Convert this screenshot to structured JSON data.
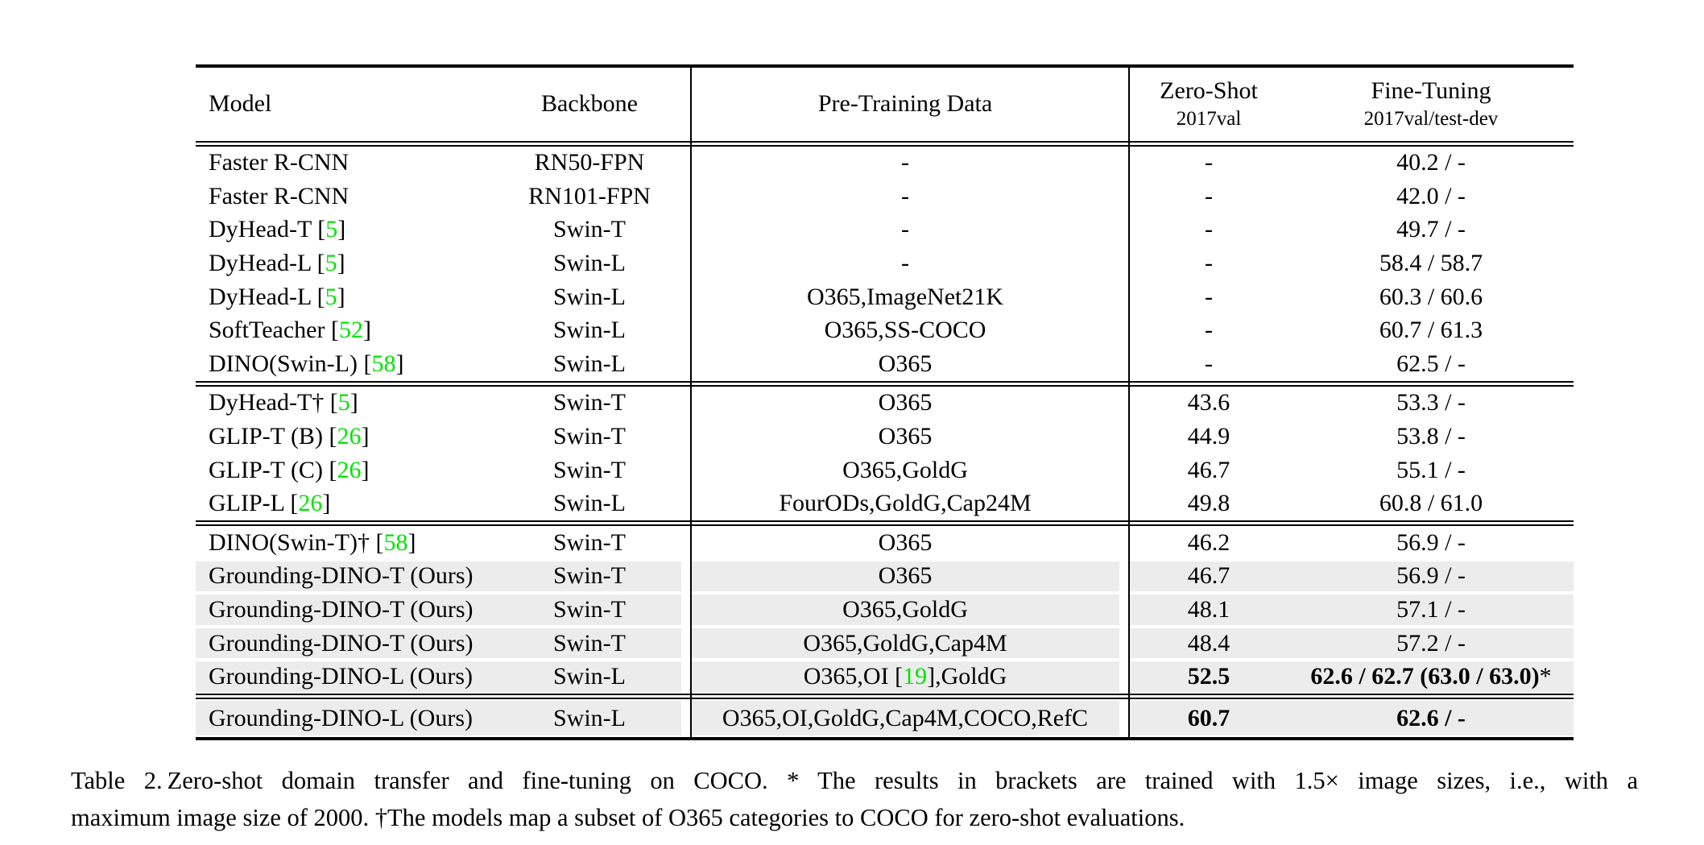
{
  "colors": {
    "cite_green": "#00e400",
    "row_highlight": "#ececec",
    "rule_black": "#000000"
  },
  "header": {
    "model": "Model",
    "backbone": "Backbone",
    "pretrain": "Pre-Training Data",
    "zero_shot": "Zero-Shot",
    "zero_shot_sub": "2017val",
    "fine_tuning": "Fine-Tuning",
    "fine_tuning_sub": "2017val/test-dev"
  },
  "sections": [
    {
      "rows": [
        {
          "model": "Faster R-CNN",
          "backbone": "RN50-FPN",
          "pretrain": "-",
          "zs": "-",
          "ft": "40.2 / -"
        },
        {
          "model": "Faster R-CNN",
          "backbone": "RN101-FPN",
          "pretrain": "-",
          "zs": "-",
          "ft": "42.0 / -"
        },
        {
          "model": "DyHead-T",
          "cite": "5",
          "backbone": "Swin-T",
          "pretrain": "-",
          "zs": "-",
          "ft": "49.7 / -"
        },
        {
          "model": "DyHead-L",
          "cite": "5",
          "backbone": "Swin-L",
          "pretrain": "-",
          "zs": "-",
          "ft": "58.4 / 58.7"
        },
        {
          "model": "DyHead-L",
          "cite": "5",
          "backbone": "Swin-L",
          "pretrain": "O365,ImageNet21K",
          "zs": "-",
          "ft": "60.3 / 60.6"
        },
        {
          "model": "SoftTeacher",
          "cite": "52",
          "backbone": "Swin-L",
          "pretrain": "O365,SS-COCO",
          "zs": "-",
          "ft": "60.7 / 61.3"
        },
        {
          "model": "DINO(Swin-L)",
          "cite": "58",
          "backbone": "Swin-L",
          "pretrain": "O365",
          "zs": "-",
          "ft": "62.5 / -"
        }
      ]
    },
    {
      "rows": [
        {
          "model": "DyHead-T†",
          "cite": "5",
          "backbone": "Swin-T",
          "pretrain": "O365",
          "zs": "43.6",
          "ft": "53.3 / -"
        },
        {
          "model": "GLIP-T (B)",
          "cite": "26",
          "backbone": "Swin-T",
          "pretrain": "O365",
          "zs": "44.9",
          "ft": "53.8 / -"
        },
        {
          "model": "GLIP-T (C)",
          "cite": "26",
          "backbone": "Swin-T",
          "pretrain": "O365,GoldG",
          "zs": "46.7",
          "ft": "55.1 / -"
        },
        {
          "model": "GLIP-L",
          "cite": "26",
          "backbone": "Swin-L",
          "pretrain": "FourODs,GoldG,Cap24M",
          "zs": "49.8",
          "ft": "60.8 / 61.0"
        }
      ]
    },
    {
      "rows": [
        {
          "model": "DINO(Swin-T)†",
          "cite": "58",
          "backbone": "Swin-T",
          "pretrain": "O365",
          "zs": "46.2",
          "ft": "56.9 / -"
        },
        {
          "model": "Grounding-DINO-T (Ours)",
          "backbone": "Swin-T",
          "pretrain": "O365",
          "zs": "46.7",
          "ft": "56.9 / -",
          "hl": true
        },
        {
          "model": "Grounding-DINO-T (Ours)",
          "backbone": "Swin-T",
          "pretrain": "O365,GoldG",
          "zs": "48.1",
          "ft": "57.1 / -",
          "hl": true
        },
        {
          "model": "Grounding-DINO-T (Ours)",
          "backbone": "Swin-T",
          "pretrain": "O365,GoldG,Cap4M",
          "zs": "48.4",
          "ft": "57.2 / -",
          "hl": true
        },
        {
          "model": "Grounding-DINO-L (Ours)",
          "backbone": "Swin-L",
          "pretrain": {
            "pre": "O365,OI [",
            "cite": "19",
            "post": "],GoldG"
          },
          "zs": "52.5",
          "ft": "62.6 / 62.7 (63.0 / 63.0)",
          "ft_suffix": "*",
          "bold": true,
          "hl": true
        }
      ]
    },
    {
      "rows": [
        {
          "model": "Grounding-DINO-L (Ours)",
          "backbone": "Swin-L",
          "pretrain": "O365,OI,GoldG,Cap4M,COCO,RefC",
          "zs": "60.7",
          "ft": "62.6 / -",
          "bold": true,
          "hl": true
        }
      ]
    }
  ],
  "caption": {
    "label": "Table 2.",
    "line1": "Zero-shot domain transfer and fine-tuning on COCO. * The results in brackets are trained with 1.5× image sizes, i.e., with a",
    "line2": "maximum image size of 2000. †The models map a subset of O365 categories to COCO for zero-shot evaluations."
  }
}
